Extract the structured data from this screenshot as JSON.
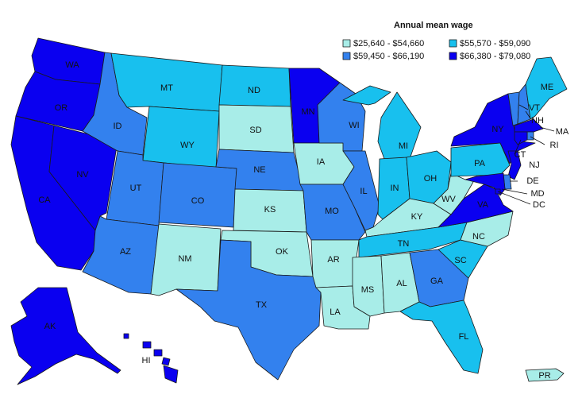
{
  "legend": {
    "title": "Annual mean wage",
    "items": [
      {
        "label": "$25,640 - $54,660",
        "color": "#a8ede8"
      },
      {
        "label": "$55,570 - $59,090",
        "color": "#18c0ee"
      },
      {
        "label": "$59,450 - $66,190",
        "color": "#3381ee"
      },
      {
        "label": "$66,380 - $79,080",
        "color": "#0a00f0"
      }
    ]
  },
  "states": [
    {
      "code": "WA",
      "label": "WA",
      "class": 3
    },
    {
      "code": "OR",
      "label": "OR",
      "class": 3
    },
    {
      "code": "CA",
      "label": "CA",
      "class": 3
    },
    {
      "code": "NV",
      "label": "NV",
      "class": 3
    },
    {
      "code": "ID",
      "label": "ID",
      "class": 2
    },
    {
      "code": "MT",
      "label": "MT",
      "class": 1
    },
    {
      "code": "WY",
      "label": "WY",
      "class": 1
    },
    {
      "code": "UT",
      "label": "UT",
      "class": 2
    },
    {
      "code": "AZ",
      "label": "AZ",
      "class": 2
    },
    {
      "code": "CO",
      "label": "CO",
      "class": 2
    },
    {
      "code": "NM",
      "label": "NM",
      "class": 0
    },
    {
      "code": "ND",
      "label": "ND",
      "class": 1
    },
    {
      "code": "SD",
      "label": "SD",
      "class": 0
    },
    {
      "code": "NE",
      "label": "NE",
      "class": 2
    },
    {
      "code": "KS",
      "label": "KS",
      "class": 0
    },
    {
      "code": "OK",
      "label": "OK",
      "class": 0
    },
    {
      "code": "TX",
      "label": "TX",
      "class": 2
    },
    {
      "code": "MN",
      "label": "MN",
      "class": 3
    },
    {
      "code": "IA",
      "label": "IA",
      "class": 0
    },
    {
      "code": "MO",
      "label": "MO",
      "class": 2
    },
    {
      "code": "AR",
      "label": "AR",
      "class": 0
    },
    {
      "code": "LA",
      "label": "LA",
      "class": 0
    },
    {
      "code": "WI",
      "label": "WI",
      "class": 2
    },
    {
      "code": "IL",
      "label": "IL",
      "class": 2
    },
    {
      "code": "MI",
      "label": "MI",
      "class": 1
    },
    {
      "code": "IN",
      "label": "IN",
      "class": 1
    },
    {
      "code": "OH",
      "label": "OH",
      "class": 1
    },
    {
      "code": "KY",
      "label": "KY",
      "class": 0
    },
    {
      "code": "TN",
      "label": "TN",
      "class": 1
    },
    {
      "code": "MS",
      "label": "MS",
      "class": 0
    },
    {
      "code": "AL",
      "label": "AL",
      "class": 0
    },
    {
      "code": "GA",
      "label": "GA",
      "class": 2
    },
    {
      "code": "FL",
      "label": "FL",
      "class": 1
    },
    {
      "code": "SC",
      "label": "SC",
      "class": 1
    },
    {
      "code": "NC",
      "label": "NC",
      "class": 0
    },
    {
      "code": "VA",
      "label": "VA",
      "class": 3
    },
    {
      "code": "WV",
      "label": "WV",
      "class": 0
    },
    {
      "code": "PA",
      "label": "PA",
      "class": 1
    },
    {
      "code": "NY",
      "label": "NY",
      "class": 3
    },
    {
      "code": "VT",
      "label": "VT",
      "class": 2
    },
    {
      "code": "NH",
      "label": "NH",
      "class": 2
    },
    {
      "code": "ME",
      "label": "ME",
      "class": 1
    },
    {
      "code": "MA",
      "label": "MA",
      "class": 3
    },
    {
      "code": "RI",
      "label": "RI",
      "class": 2
    },
    {
      "code": "CT",
      "label": "CT",
      "class": 3
    },
    {
      "code": "NJ",
      "label": "NJ",
      "class": 3
    },
    {
      "code": "DE",
      "label": "DE",
      "class": 2
    },
    {
      "code": "MD",
      "label": "MD",
      "class": 3
    },
    {
      "code": "DC",
      "label": "DC",
      "class": 3
    },
    {
      "code": "AK",
      "label": "AK",
      "class": 3
    },
    {
      "code": "HI",
      "label": "HI",
      "class": 3
    },
    {
      "code": "PR",
      "label": "PR",
      "class": 0
    }
  ]
}
